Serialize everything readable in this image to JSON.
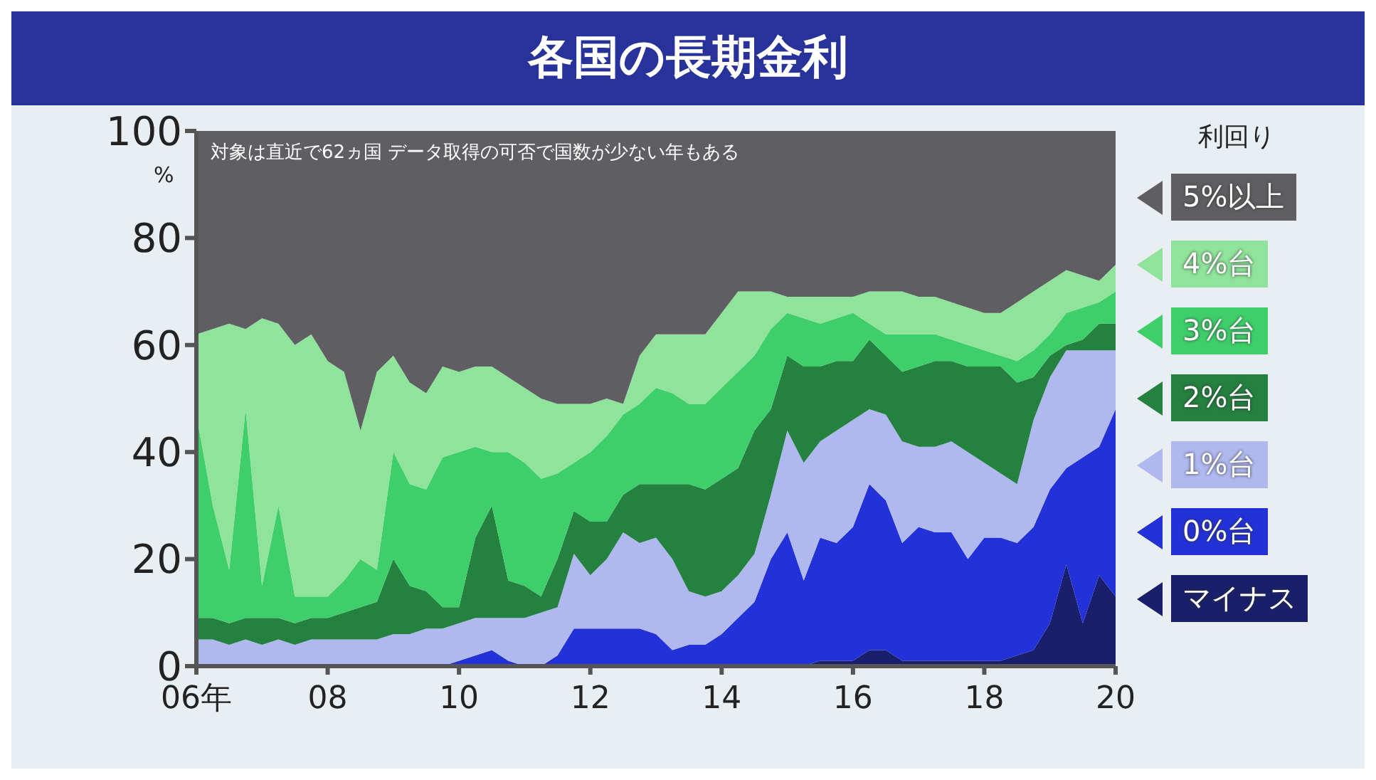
{
  "chart_data": {
    "type": "area",
    "title": "各国の長期金利",
    "ylabel": "%",
    "legend_title": "利回り",
    "annotations": [
      "対象は直近で62ヵ国 データ取得の可否で国数が少ない年もある"
    ],
    "stacked": true,
    "legend": "right",
    "x": [
      6,
      6.25,
      6.5,
      6.75,
      7,
      7.25,
      7.5,
      7.75,
      8,
      8.25,
      8.5,
      8.75,
      9,
      9.25,
      9.5,
      9.75,
      10,
      10.25,
      10.5,
      10.75,
      11,
      11.25,
      11.5,
      11.75,
      12,
      12.25,
      12.5,
      12.75,
      13,
      13.25,
      13.5,
      13.75,
      14,
      14.25,
      14.5,
      14.75,
      15,
      15.25,
      15.5,
      15.75,
      16,
      16.25,
      16.5,
      16.75,
      17,
      17.25,
      17.5,
      17.75,
      18,
      18.25,
      18.5,
      18.75,
      19,
      19.25,
      19.5,
      19.75,
      20
    ],
    "xlim": [
      6,
      20
    ],
    "xticks": [
      {
        "value": 6,
        "label": "06年"
      },
      {
        "value": 8,
        "label": "08"
      },
      10,
      12,
      14,
      16,
      18,
      20
    ],
    "ylim": [
      0,
      100
    ],
    "yticks": [
      0,
      20,
      40,
      60,
      80,
      100
    ],
    "series": [
      {
        "name": "マイナス",
        "color": "#1a1f6b",
        "values": [
          0,
          0,
          0,
          0,
          0,
          0,
          0,
          0,
          0,
          0,
          0,
          0,
          0,
          0,
          0,
          0,
          0,
          0,
          0,
          0,
          0,
          0,
          0,
          0,
          0,
          0,
          0,
          0,
          0,
          0,
          0,
          0,
          0,
          0,
          0,
          0,
          0,
          0,
          1,
          1,
          1,
          3,
          3,
          1,
          1,
          1,
          1,
          1,
          1,
          1,
          2,
          3,
          8,
          19,
          8,
          17,
          13
        ]
      },
      {
        "name": "0%台",
        "color": "#2232d8",
        "values": [
          0,
          0,
          0,
          0,
          0,
          0,
          0,
          0,
          0,
          0,
          0,
          0,
          0,
          0,
          0,
          0,
          1,
          2,
          3,
          1,
          0,
          0,
          2,
          7,
          7,
          7,
          7,
          7,
          6,
          3,
          4,
          4,
          6,
          9,
          12,
          20,
          25,
          16,
          23,
          22,
          25,
          31,
          28,
          22,
          25,
          24,
          24,
          19,
          23,
          23,
          21,
          23,
          25,
          18,
          31,
          24,
          35
        ]
      },
      {
        "name": "1%台",
        "color": "#b0b8f0",
        "values": [
          5,
          5,
          4,
          5,
          4,
          5,
          4,
          5,
          5,
          5,
          5,
          5,
          6,
          6,
          7,
          7,
          7,
          7,
          6,
          8,
          9,
          10,
          9,
          14,
          10,
          13,
          18,
          16,
          18,
          17,
          10,
          9,
          8,
          8,
          9,
          12,
          19,
          22,
          18,
          21,
          20,
          14,
          16,
          19,
          15,
          16,
          17,
          20,
          14,
          12,
          11,
          20,
          21,
          22,
          20,
          18,
          11
        ]
      },
      {
        "name": "2%台",
        "color": "#24813f",
        "values": [
          4,
          4,
          4,
          4,
          5,
          4,
          4,
          4,
          4,
          5,
          6,
          7,
          14,
          9,
          7,
          4,
          3,
          15,
          21,
          7,
          6,
          3,
          9,
          8,
          10,
          7,
          7,
          11,
          10,
          14,
          20,
          20,
          21,
          20,
          23,
          16,
          14,
          18,
          14,
          13,
          11,
          13,
          11,
          13,
          15,
          16,
          15,
          16,
          18,
          20,
          19,
          8,
          4,
          1,
          2,
          5,
          5
        ]
      },
      {
        "name": "3%台",
        "color": "#3ecf6a",
        "values": [
          38,
          21,
          10,
          39,
          6,
          21,
          5,
          4,
          4,
          6,
          9,
          6,
          20,
          19,
          19,
          28,
          29,
          17,
          10,
          24,
          23,
          22,
          16,
          9,
          13,
          16,
          15,
          15,
          18,
          17,
          15,
          16,
          17,
          18,
          14,
          15,
          8,
          9,
          8,
          8,
          9,
          3,
          4,
          7,
          6,
          5,
          4,
          4,
          3,
          2,
          4,
          5,
          4,
          6,
          6,
          4,
          6
        ]
      },
      {
        "name": "4%台",
        "color": "#8fe39a",
        "values": [
          15,
          33,
          46,
          15,
          50,
          34,
          47,
          49,
          44,
          39,
          24,
          37,
          18,
          19,
          18,
          17,
          15,
          15,
          16,
          14,
          14,
          15,
          13,
          11,
          9,
          7,
          2,
          9,
          10,
          11,
          13,
          13,
          14,
          15,
          12,
          7,
          3,
          4,
          5,
          4,
          3,
          6,
          8,
          8,
          7,
          7,
          7,
          7,
          7,
          8,
          11,
          11,
          10,
          8,
          6,
          4,
          5
        ]
      },
      {
        "name": "5%以上",
        "color": "#5f5f63",
        "values": [
          38,
          37,
          36,
          37,
          35,
          36,
          40,
          38,
          43,
          45,
          56,
          45,
          42,
          47,
          49,
          44,
          45,
          44,
          44,
          46,
          48,
          50,
          51,
          51,
          51,
          50,
          51,
          42,
          38,
          38,
          38,
          38,
          34,
          30,
          30,
          30,
          31,
          31,
          31,
          31,
          31,
          30,
          30,
          30,
          31,
          31,
          32,
          33,
          34,
          34,
          32,
          30,
          28,
          26,
          27,
          28,
          25
        ]
      }
    ]
  }
}
